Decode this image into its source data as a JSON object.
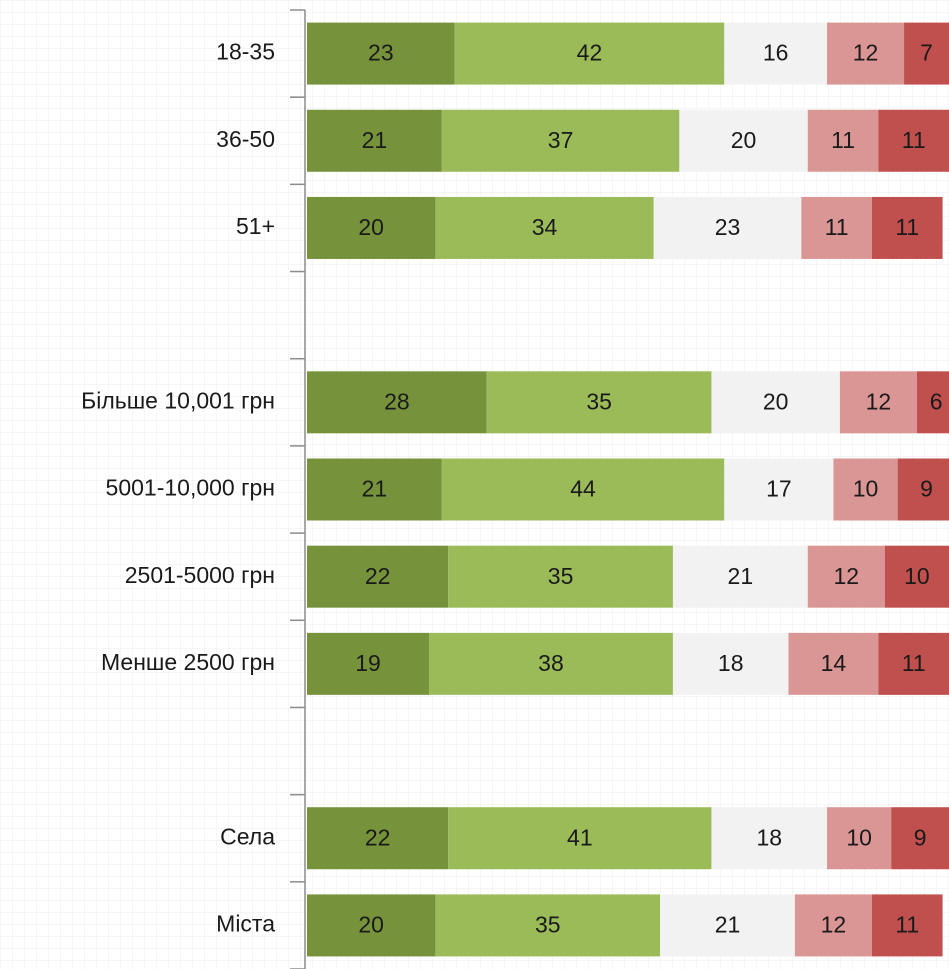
{
  "chart_data": {
    "type": "stacked-bar-horizontal",
    "categories": [
      "18-35",
      "36-50",
      "51+",
      null,
      "Більше 10,001 грн",
      "5001-10,000 грн",
      "2501-5000 грн",
      "Менше 2500 грн",
      null,
      "Села",
      "Міста"
    ],
    "series": [
      {
        "color": "#76933c",
        "values": [
          23,
          21,
          20,
          null,
          28,
          21,
          22,
          19,
          null,
          22,
          20
        ]
      },
      {
        "color": "#9bbb59",
        "values": [
          42,
          37,
          34,
          null,
          35,
          44,
          35,
          38,
          null,
          41,
          35
        ]
      },
      {
        "color": "#f2f2f2",
        "values": [
          16,
          20,
          23,
          null,
          20,
          17,
          21,
          18,
          null,
          18,
          21
        ]
      },
      {
        "color": "#da9694",
        "values": [
          12,
          11,
          11,
          null,
          12,
          10,
          12,
          14,
          null,
          10,
          12
        ]
      },
      {
        "color": "#c0504d",
        "values": [
          7,
          11,
          11,
          null,
          6,
          9,
          10,
          11,
          null,
          9,
          11
        ]
      }
    ],
    "xlim": [
      0,
      100
    ]
  }
}
